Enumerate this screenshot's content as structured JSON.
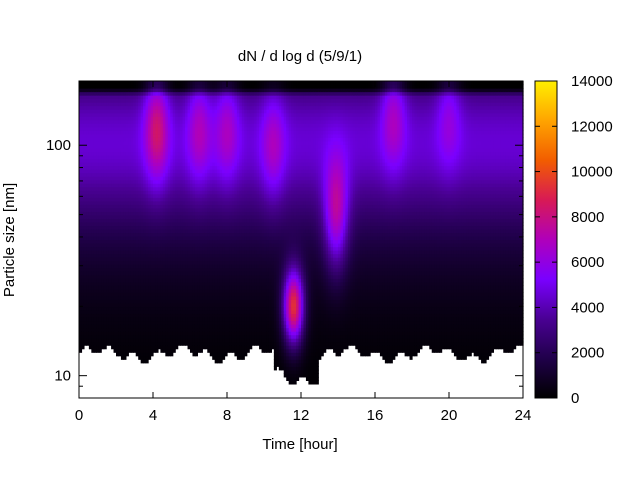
{
  "chart_data": {
    "type": "heatmap",
    "title": "dN / d log d (5/9/1)",
    "xlabel": "Time [hour]",
    "ylabel": "Particle size [nm]",
    "xlim": [
      0,
      24
    ],
    "x_ticks": [
      "0",
      "4",
      "8",
      "12",
      "16",
      "20",
      "24"
    ],
    "ylim": [
      8,
      190
    ],
    "y_scale": "log",
    "y_ticks": [
      "10",
      "100"
    ],
    "colorbar": {
      "range": [
        0,
        14000
      ],
      "ticks": [
        "0",
        "2000",
        "4000",
        "6000",
        "8000",
        "10000",
        "12000",
        "14000"
      ],
      "palette": "black-purple-red-orange-yellow"
    },
    "colors": {
      "c0": "#000000",
      "c1": "#20004a",
      "c2": "#4a0094",
      "c3": "#7a00ff",
      "c4": "#b000ba",
      "c5": "#d81a55",
      "c6": "#f25d00",
      "c7": "#ffa400",
      "c8": "#ffef00"
    },
    "size_distribution_peaks": [
      {
        "time_hour": 4.2,
        "size_nm": 120,
        "value": 7600
      },
      {
        "time_hour": 6.5,
        "size_nm": 120,
        "value": 6200
      },
      {
        "time_hour": 8.0,
        "size_nm": 120,
        "value": 6000
      },
      {
        "time_hour": 10.5,
        "size_nm": 100,
        "value": 6000
      },
      {
        "time_hour": 11.6,
        "size_nm": 20,
        "value": 12500
      },
      {
        "time_hour": 13.9,
        "size_nm": 50,
        "value": 8500
      },
      {
        "time_hour": 17.0,
        "size_nm": 140,
        "value": 6300
      },
      {
        "time_hour": 20.0,
        "size_nm": 140,
        "value": 5500
      }
    ],
    "grid": false,
    "legend": "colorbar-right"
  }
}
